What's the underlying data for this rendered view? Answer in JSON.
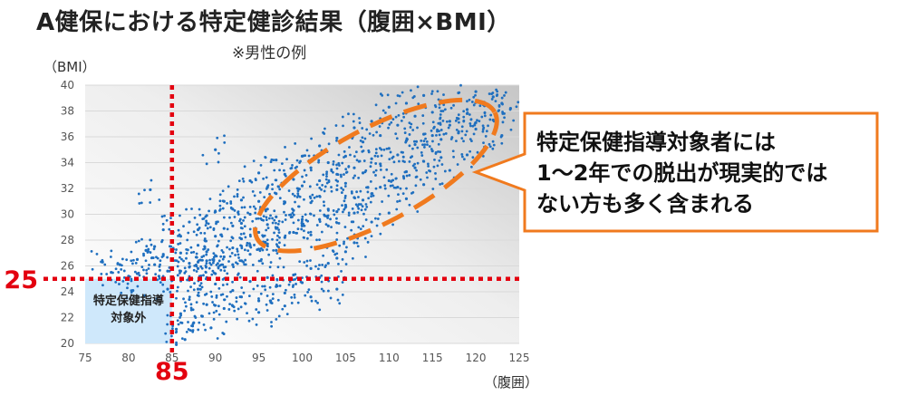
{
  "title": "A健保における特定健診結果（腹囲×BMI）",
  "subtitle": "※男性の例",
  "callout": {
    "lines": [
      "特定保健指導対象者には",
      "1〜2年での脱出が現実的では",
      "ない方も多く含まれる"
    ]
  },
  "colors": {
    "points": "#1f6fbf",
    "threshold_line": "#e3000f",
    "target_box": "#cfe8fb",
    "ellipse": "#f07a1e",
    "callout_border": "#f07a1e"
  },
  "chart_data": {
    "type": "scatter",
    "xlabel": "（腹囲）",
    "ylabel": "（BMI）",
    "xlim": [
      75,
      125
    ],
    "ylim": [
      20,
      40
    ],
    "x_ticks": [
      75,
      80,
      85,
      90,
      95,
      100,
      105,
      110,
      115,
      120,
      125
    ],
    "y_ticks": [
      20,
      22,
      24,
      26,
      28,
      30,
      32,
      34,
      36,
      38,
      40
    ],
    "thresholds": {
      "x": 85,
      "y": 25,
      "x_label": "85",
      "y_label": "25"
    },
    "target_region_label": [
      "特定保健指導",
      "対象外"
    ],
    "highlight": {
      "shape": "ellipse",
      "x_range": [
        93,
        124
      ],
      "y_range": [
        26,
        40
      ]
    },
    "series": [
      {
        "points": [
          [
            77,
            26.3
          ],
          [
            78,
            25.5
          ],
          [
            79,
            26.1
          ],
          [
            80,
            25.2
          ],
          [
            80.5,
            24.1
          ],
          [
            81,
            26.5
          ],
          [
            81,
            25.4
          ],
          [
            82,
            27.2
          ],
          [
            82.5,
            31.9
          ],
          [
            83,
            27.5
          ],
          [
            83,
            26.1
          ],
          [
            83.5,
            25.2
          ],
          [
            84,
            28.8
          ],
          [
            84,
            26.9
          ],
          [
            84.5,
            25.6
          ],
          [
            84.5,
            24.2
          ],
          [
            86,
            28.3
          ],
          [
            86,
            27
          ],
          [
            87,
            29.4
          ],
          [
            87,
            26.2
          ],
          [
            88,
            28.8
          ],
          [
            88,
            27.6
          ],
          [
            89,
            29.9
          ],
          [
            89,
            27.1
          ],
          [
            90,
            35
          ],
          [
            90,
            30.2
          ],
          [
            90,
            28.3
          ],
          [
            91,
            31
          ],
          [
            91,
            28.9
          ],
          [
            92,
            30.4
          ],
          [
            92,
            29.1
          ],
          [
            93,
            31.1
          ],
          [
            93,
            29.3
          ],
          [
            94,
            32.6
          ],
          [
            94,
            30
          ],
          [
            95,
            33.2
          ],
          [
            95,
            31
          ],
          [
            96,
            32.1
          ],
          [
            96,
            30.4
          ],
          [
            97,
            34.2
          ],
          [
            97,
            31.6
          ],
          [
            98,
            33.1
          ],
          [
            98,
            30.9
          ],
          [
            99,
            32.7
          ],
          [
            100,
            34.5
          ],
          [
            100,
            32.2
          ],
          [
            101,
            33.6
          ],
          [
            102,
            35.3
          ],
          [
            102,
            32.6
          ],
          [
            103,
            34
          ],
          [
            104,
            35.9
          ],
          [
            104,
            33.1
          ],
          [
            105,
            34.5
          ],
          [
            106,
            36.7
          ],
          [
            106,
            33.6
          ],
          [
            107,
            35.6
          ],
          [
            108,
            37.2
          ],
          [
            108,
            34.3
          ],
          [
            109,
            36.1
          ],
          [
            110,
            38.3
          ],
          [
            110,
            35.1
          ],
          [
            111,
            36.9
          ],
          [
            112,
            38.6
          ],
          [
            112,
            35.7
          ],
          [
            113,
            37.6
          ],
          [
            114,
            39.2
          ],
          [
            114,
            36.2
          ],
          [
            115,
            37.9
          ],
          [
            116,
            38.8
          ],
          [
            117,
            36.9
          ],
          [
            118,
            39.4
          ],
          [
            118,
            37.4
          ],
          [
            119,
            38.1
          ],
          [
            120,
            39.5
          ],
          [
            120,
            36.6
          ],
          [
            121,
            38.4
          ],
          [
            122,
            39.1
          ],
          [
            122,
            37.3
          ],
          [
            123,
            38.6
          ],
          [
            116,
            34.4
          ],
          [
            113,
            33.6
          ],
          [
            109,
            32.1
          ],
          [
            106,
            31.3
          ],
          [
            103,
            30.4
          ],
          [
            100,
            29.6
          ],
          [
            97,
            28.9
          ],
          [
            94,
            27.6
          ],
          [
            91,
            26.7
          ],
          [
            88,
            25.8
          ],
          [
            85.5,
            21.1
          ],
          [
            86,
            22.3
          ],
          [
            87,
            23.4
          ],
          [
            88,
            24.2
          ],
          [
            89,
            23
          ],
          [
            90,
            24.6
          ],
          [
            91,
            22.7
          ],
          [
            92,
            24.1
          ],
          [
            93,
            23.6
          ],
          [
            94,
            24.8
          ],
          [
            95,
            23.3
          ],
          [
            96,
            25.1
          ],
          [
            97,
            24.4
          ],
          [
            98,
            23.9
          ],
          [
            99,
            25.3
          ],
          [
            100,
            24.7
          ],
          [
            101,
            25.8
          ],
          [
            102,
            25.1
          ],
          [
            103,
            26.2
          ],
          [
            104,
            26.6
          ],
          [
            105,
            27.1
          ],
          [
            106,
            27.8
          ],
          [
            107,
            28.5
          ],
          [
            108,
            29.4
          ],
          [
            110,
            30.1
          ],
          [
            112,
            31.2
          ],
          [
            114,
            32.3
          ],
          [
            117,
            33.4
          ],
          [
            119,
            34.6
          ],
          [
            121,
            35.2
          ],
          [
            123,
            36.1
          ],
          [
            85.5,
            19.9
          ],
          [
            86.5,
            20.3
          ],
          [
            87.5,
            21.6
          ],
          [
            88.5,
            22.1
          ],
          [
            89.5,
            21.2
          ],
          [
            92,
            22.9
          ],
          [
            95,
            22.4
          ],
          [
            98,
            22.9
          ],
          [
            101,
            23.6
          ],
          [
            104,
            24.2
          ],
          [
            86,
            25.6
          ],
          [
            87,
            25.9
          ],
          [
            89,
            26.4
          ],
          [
            90,
            26.8
          ],
          [
            92,
            27.4
          ],
          [
            93,
            28.1
          ],
          [
            95,
            28.6
          ],
          [
            96,
            29.2
          ],
          [
            97,
            29.8
          ],
          [
            99,
            30.3
          ],
          [
            101,
            30.9
          ],
          [
            102,
            31.4
          ],
          [
            104,
            31.9
          ],
          [
            105,
            32.4
          ],
          [
            107,
            33.2
          ],
          [
            109,
            33.9
          ],
          [
            111,
            34.6
          ],
          [
            113,
            35.4
          ],
          [
            115,
            36.1
          ],
          [
            117,
            37.2
          ],
          [
            119,
            37.8
          ],
          [
            87,
            24.9
          ],
          [
            88,
            26.3
          ],
          [
            89,
            25.1
          ],
          [
            90,
            25.4
          ],
          [
            91,
            25.9
          ],
          [
            92,
            26.1
          ],
          [
            93,
            26.4
          ],
          [
            94,
            26.9
          ],
          [
            95,
            27.3
          ],
          [
            96,
            27.7
          ],
          [
            97,
            27.2
          ],
          [
            98,
            28.2
          ],
          [
            99,
            28.6
          ],
          [
            100,
            29.1
          ],
          [
            101,
            28.4
          ],
          [
            102,
            29.6
          ],
          [
            103,
            29.1
          ],
          [
            104,
            30.2
          ],
          [
            105,
            30.7
          ],
          [
            106,
            30.1
          ],
          [
            107,
            31.1
          ],
          [
            108,
            31.6
          ],
          [
            110,
            32.6
          ],
          [
            111,
            32.1
          ],
          [
            112,
            33.3
          ],
          [
            114,
            34.1
          ],
          [
            115,
            34.9
          ],
          [
            116,
            35.8
          ],
          [
            118,
            36.3
          ],
          [
            120,
            37.1
          ],
          [
            122,
            38.1
          ],
          [
            124,
            38.2
          ]
        ]
      }
    ]
  }
}
